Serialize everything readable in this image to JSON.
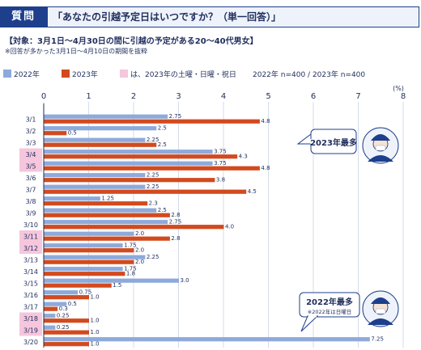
{
  "header": {
    "badge": "質問",
    "title": "「あなたの引越予定日はいつですか？（単一回答）」"
  },
  "subject": "【対象：3月1日～4月30日の間に引越の予定がある20～40代男女】",
  "note": "※回答が多かった3月1日～4月10日の期間を抜粋",
  "legend": {
    "s2022": "2022年",
    "s2023": "2023年",
    "weekend": "は、2023年の土曜・日曜・祝日",
    "sample": "2022年 n=400 / 2023年 n=400"
  },
  "callouts": {
    "c2023": "2023年最多",
    "c2022": "2022年最多",
    "c2022_note": "※2022年は日曜日"
  },
  "colors": {
    "s2022": "#8eaadb",
    "s2023": "#d24a1e",
    "weekend": "#f5c6dc",
    "navy": "#1e3f8c"
  },
  "chart_data": {
    "type": "bar",
    "orientation": "horizontal",
    "unit_label": "(%)",
    "xlim": [
      0,
      8
    ],
    "ticks": [
      0,
      1,
      2,
      3,
      4,
      5,
      6,
      7,
      8
    ],
    "grid": true,
    "categories": [
      "3/1",
      "3/2",
      "3/3",
      "3/4",
      "3/5",
      "3/6",
      "3/7",
      "3/8",
      "3/9",
      "3/10",
      "3/11",
      "3/12",
      "3/13",
      "3/14",
      "3/15",
      "3/16",
      "3/17",
      "3/18",
      "3/19",
      "3/20"
    ],
    "weekend_categories": [
      "3/4",
      "3/5",
      "3/11",
      "3/12",
      "3/18",
      "3/19"
    ],
    "series": [
      {
        "name": "2022年",
        "values": [
          2.75,
          2.5,
          2.25,
          3.75,
          3.75,
          2.25,
          2.25,
          1.25,
          2.5,
          2.75,
          2.0,
          1.75,
          2.25,
          1.75,
          3.0,
          0.75,
          0.5,
          0.25,
          0.25,
          7.25
        ]
      },
      {
        "name": "2023年",
        "values": [
          4.8,
          0.5,
          2.5,
          4.3,
          4.8,
          3.8,
          4.5,
          2.3,
          2.8,
          4.0,
          2.8,
          2.0,
          2.0,
          1.8,
          1.5,
          1.0,
          0.3,
          1.0,
          1.0,
          1.0
        ]
      }
    ],
    "value_labels": [
      [
        "2.75",
        "2.5",
        "2.25",
        "3.75",
        "3.75",
        "2.25",
        "2.25",
        "1.25",
        "2.5",
        "2.75",
        "2.0",
        "1.75",
        "2.25",
        "1.75",
        "3.0",
        "0.75",
        "0.5",
        "0.25",
        "0.25",
        "7.25"
      ],
      [
        "4.8",
        "0.5",
        "2.5",
        "4.3",
        "4.8",
        "3.8",
        "4.5",
        "2.3",
        "2.8",
        "4.0",
        "2.8",
        "2.0",
        "2.0",
        "1.8",
        "1.5",
        "1.0",
        "0.3",
        "1.0",
        "1.0",
        "1.0"
      ]
    ]
  }
}
